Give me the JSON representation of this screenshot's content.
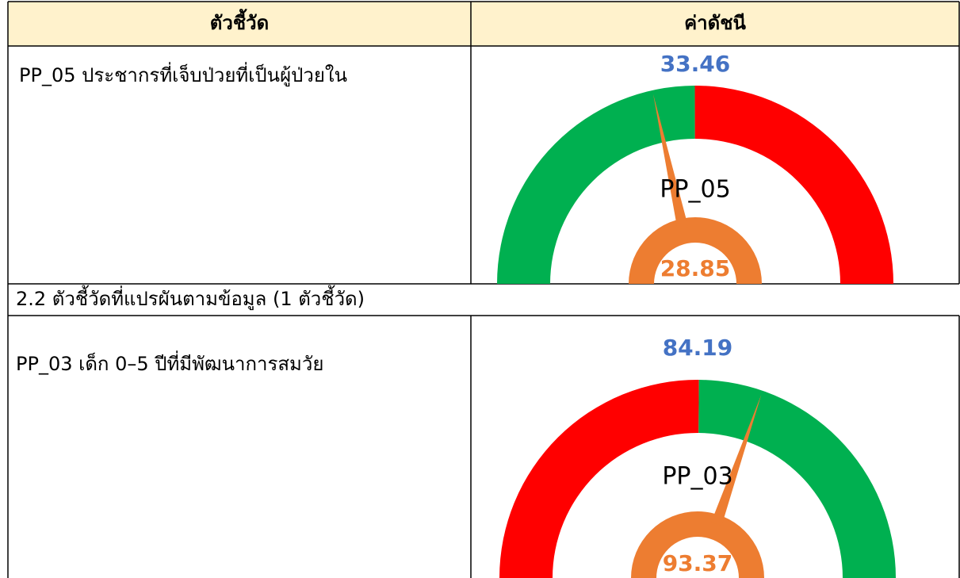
{
  "table": {
    "headers": [
      "ตัวชี้วัด",
      "ค่าดัชนี"
    ],
    "rows": [
      {
        "indicator": "PP_05 ประชากรที่เจ็บป่วยที่เป็นผู้ป่วยใน",
        "gauge": {
          "type": "gauge",
          "target": 33.46,
          "value": 28.85,
          "label": "PP_05",
          "ylim": [
            0,
            67
          ],
          "colors": [
            "#00b050",
            "#ff0000"
          ],
          "needle_color": "#ed7d31",
          "target_color": "#4472c4"
        }
      },
      {
        "section": "2.2 ตัวชี้วัดที่แปรผันตามข้อมูล (1 ตัวชี้วัด)"
      },
      {
        "indicator": "PP_03 เด็ก 0–5 ปีที่มีพัฒนาการสมวัย",
        "gauge": {
          "type": "gauge",
          "target": 84.19,
          "value": 93.37,
          "label": "PP_03",
          "ylim": [
            40,
            128
          ],
          "colors": [
            "#ff0000",
            "#00b050"
          ],
          "needle_color": "#ed7d31",
          "target_color": "#4472c4"
        }
      }
    ]
  }
}
